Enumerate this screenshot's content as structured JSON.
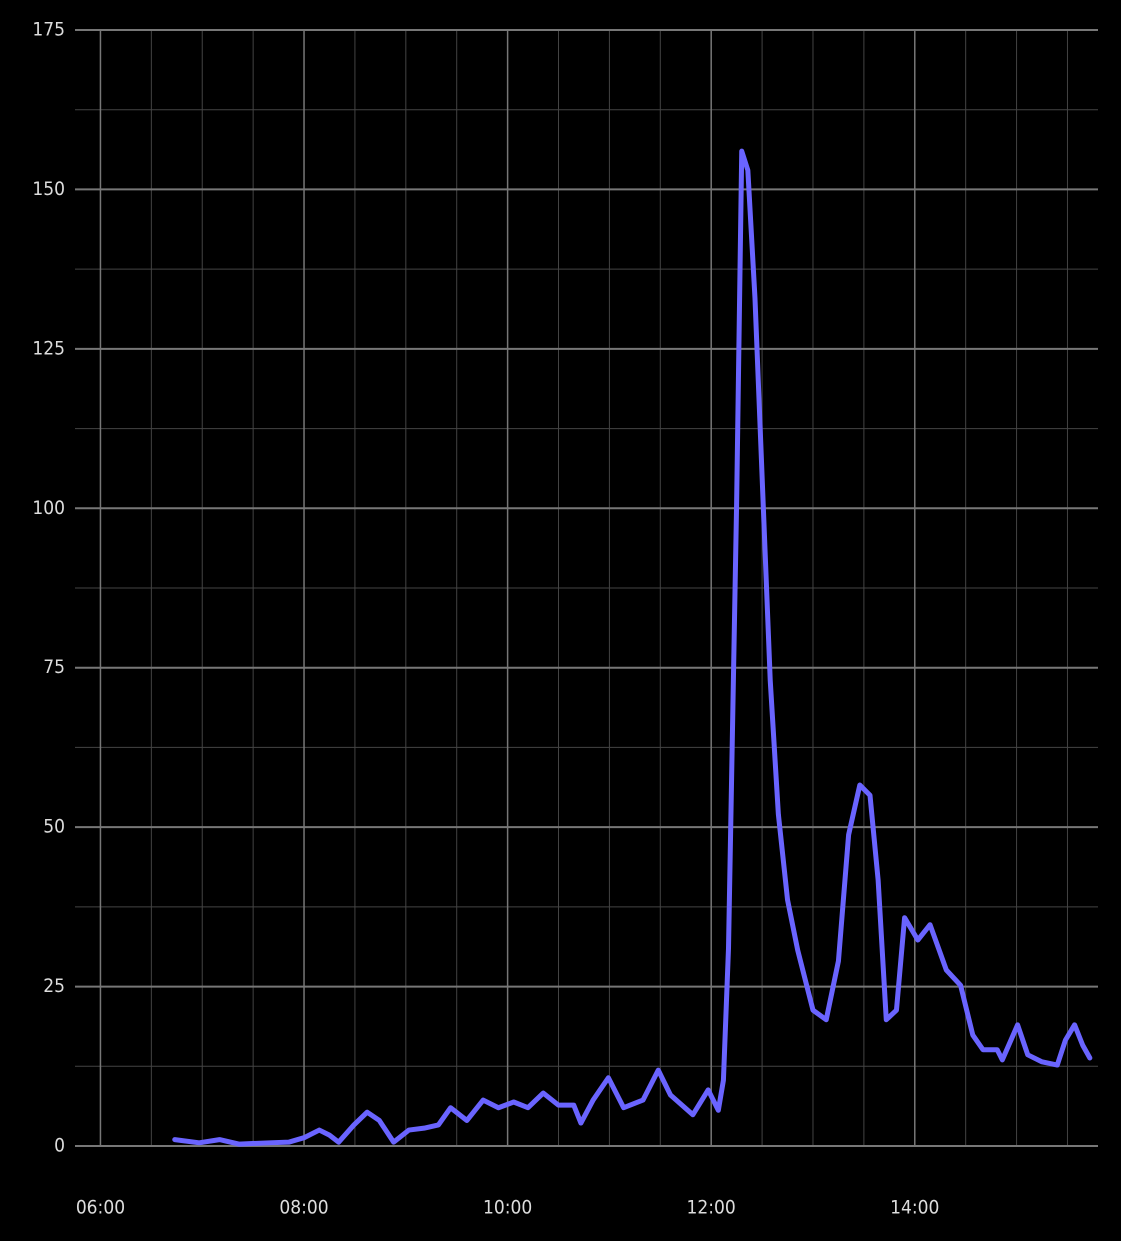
{
  "chart_data": {
    "type": "line",
    "x": [
      6.73,
      6.97,
      7.17,
      7.36,
      7.66,
      7.85,
      8.0,
      8.15,
      8.25,
      8.34,
      8.49,
      8.62,
      8.74,
      8.88,
      9.03,
      9.18,
      9.32,
      9.44,
      9.6,
      9.76,
      9.91,
      10.06,
      10.2,
      10.35,
      10.5,
      10.65,
      10.72,
      10.84,
      10.99,
      11.14,
      11.33,
      11.48,
      11.6,
      11.82,
      11.97,
      12.07,
      12.12,
      12.17,
      12.25,
      12.3,
      12.36,
      12.43,
      12.51,
      12.58,
      12.66,
      12.75,
      12.85,
      13.0,
      13.13,
      13.25,
      13.35,
      13.46,
      13.56,
      13.64,
      13.72,
      13.82,
      13.9,
      14.03,
      14.15,
      14.31,
      14.45,
      14.57,
      14.67,
      14.81,
      14.86,
      15.01,
      15.11,
      15.25,
      15.4,
      15.48,
      15.57,
      15.65,
      15.72
    ],
    "series": [
      {
        "color": "#6a64ff",
        "values": [
          1,
          0.5,
          1,
          0.3,
          0.5,
          0.6,
          1.3,
          2.5,
          1.7,
          0.6,
          3.3,
          5.3,
          4,
          0.6,
          2.5,
          2.8,
          3.3,
          6,
          4,
          7.2,
          6,
          6.9,
          6,
          8.3,
          6.4,
          6.4,
          3.6,
          7.2,
          10.7,
          6,
          7.2,
          11.9,
          8,
          4.9,
          8.8,
          5.6,
          10.3,
          31,
          101,
          156,
          153,
          133,
          101,
          73,
          52,
          38.6,
          30.7,
          21.3,
          19.8,
          29,
          48.8,
          56.6,
          55,
          41.7,
          19.8,
          21.3,
          35.8,
          32.3,
          34.7,
          27.6,
          25.2,
          17.4,
          15.1,
          15.1,
          13.5,
          19,
          14.3,
          13.2,
          12.7,
          16.6,
          19,
          15.8,
          13.8
        ]
      }
    ],
    "xlim": [
      5.75,
      15.8
    ],
    "xticks": [
      {
        "value": 6,
        "label": "06:00"
      },
      {
        "value": 8,
        "label": "08:00"
      },
      {
        "value": 10,
        "label": "10:00"
      },
      {
        "value": 12,
        "label": "12:00"
      },
      {
        "value": 14,
        "label": "14:00"
      }
    ],
    "x_minor_ticks": [
      6.5,
      7,
      7.5,
      8.5,
      9,
      9.5,
      10.5,
      11,
      11.5,
      12.5,
      13,
      13.5,
      14.5,
      15,
      15.5
    ],
    "ylim": [
      0,
      175
    ],
    "yticks": [
      0,
      25,
      50,
      75,
      100,
      125,
      150,
      175
    ],
    "y_minor_ticks": [
      12.5,
      37.5,
      62.5,
      87.5,
      112.5,
      137.5,
      162.5
    ],
    "grid": true
  }
}
